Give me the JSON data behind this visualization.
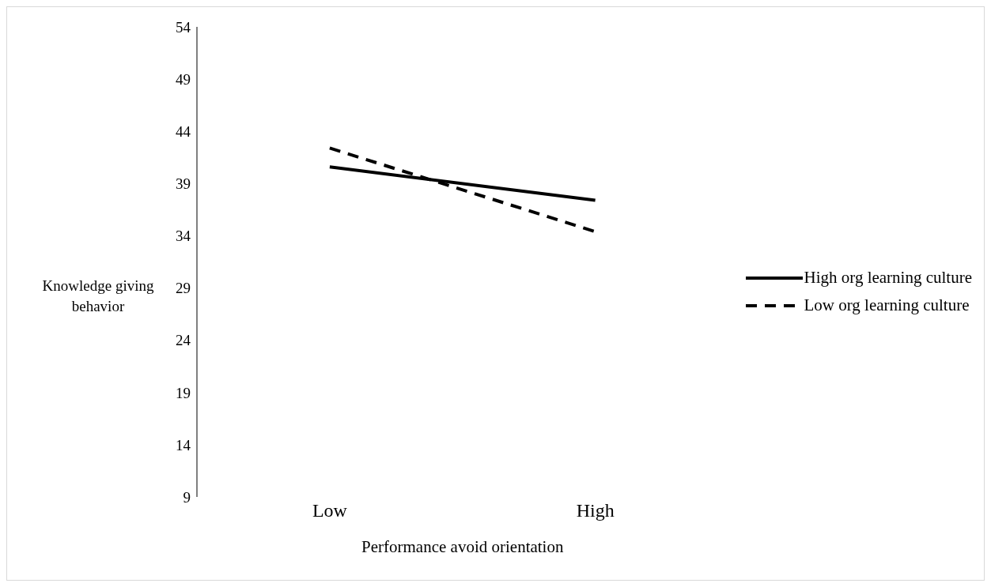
{
  "chart_data": {
    "type": "line",
    "xlabel": "Performance avoid orientation",
    "ylabel": "Knowledge giving behavior",
    "categories": [
      "Low",
      "High"
    ],
    "series": [
      {
        "name": "High org learning culture",
        "color": "#000000",
        "values": [
          40.6,
          37.4
        ],
        "line_style": "solid"
      },
      {
        "name": "Low org learning culture",
        "color": "#000000",
        "values": [
          42.4,
          34.4
        ],
        "line_style": "dashed"
      }
    ],
    "ylim": [
      9,
      54
    ],
    "yticks": [
      9,
      14,
      19,
      24,
      29,
      34,
      39,
      44,
      49,
      54
    ],
    "grid": false,
    "legend": "right",
    "marker": "none"
  }
}
